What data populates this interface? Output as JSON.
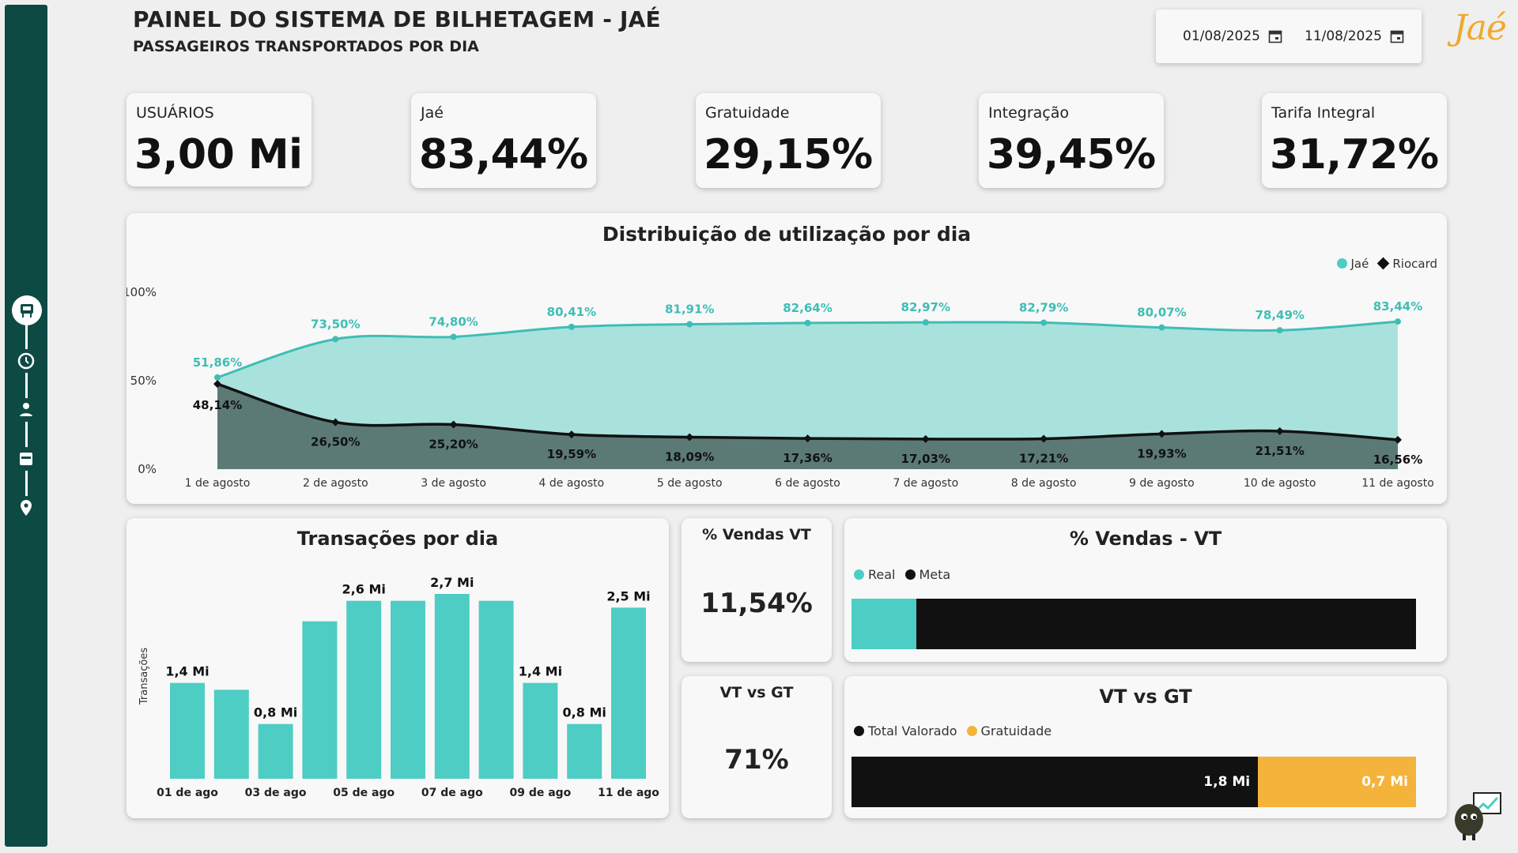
{
  "header": {
    "title": "PAINEL DO SISTEMA DE BILHETAGEM - JAÉ",
    "subtitle": "PASSAGEIROS TRANSPORTADOS POR DIA",
    "date_start": "01/08/2025",
    "date_end": "11/08/2025",
    "logo_text": "Jaé"
  },
  "sidebar": {
    "items": [
      {
        "icon": "bus-stop-icon"
      },
      {
        "icon": "clock-icon"
      },
      {
        "icon": "person-icon"
      },
      {
        "icon": "card-icon"
      },
      {
        "icon": "location-pin-icon"
      }
    ]
  },
  "kpis": [
    {
      "label": "USUÁRIOS",
      "value": "3,00 Mi"
    },
    {
      "label": "Jaé",
      "value": "83,44%"
    },
    {
      "label": "Gratuidade",
      "value": "29,15%"
    },
    {
      "label": "Integração",
      "value": "39,45%"
    },
    {
      "label": "Tarifa Integral",
      "value": "31,72%"
    }
  ],
  "colors": {
    "accent": "#4ecdc4",
    "dark": "#111111",
    "orange": "#f4b33a",
    "sidebar": "#0e4a44"
  },
  "distribution": {
    "title": "Distribuição de utilização por dia",
    "legend": [
      "Jaé",
      "Riocard"
    ],
    "y_ticks": [
      "100%",
      "50%",
      "0%"
    ],
    "chart_data": {
      "type": "area",
      "categories": [
        "1 de agosto",
        "2 de agosto",
        "3 de agosto",
        "4 de agosto",
        "5 de agosto",
        "6 de agosto",
        "7 de agosto",
        "8 de agosto",
        "9 de agosto",
        "10 de agosto",
        "11 de agosto"
      ],
      "ylim": [
        0,
        100
      ],
      "series": [
        {
          "name": "Jaé",
          "values": [
            51.86,
            73.5,
            74.8,
            80.41,
            81.91,
            82.64,
            82.97,
            82.79,
            80.07,
            78.49,
            83.44
          ],
          "labels": [
            "51,86%",
            "73,50%",
            "74,80%",
            "80,41%",
            "81,91%",
            "82,64%",
            "82,97%",
            "82,79%",
            "80,07%",
            "78,49%",
            "83,44%"
          ]
        },
        {
          "name": "Riocard",
          "values": [
            48.14,
            26.5,
            25.2,
            19.59,
            18.09,
            17.36,
            17.03,
            17.21,
            19.93,
            21.51,
            16.56
          ],
          "labels": [
            "48,14%",
            "26,50%",
            "25,20%",
            "19,59%",
            "18,09%",
            "17,36%",
            "17,03%",
            "17,21%",
            "19,93%",
            "21,51%",
            "16,56%"
          ]
        }
      ]
    }
  },
  "transactions": {
    "title": "Transações por dia",
    "ylabel": "Transações",
    "x_tick_labels": [
      "01 de ago",
      "03 de ago",
      "05 de ago",
      "07 de ago",
      "09 de ago",
      "11 de ago"
    ],
    "chart_data": {
      "type": "bar",
      "categories": [
        "01 de ago",
        "02 de ago",
        "03 de ago",
        "04 de ago",
        "05 de ago",
        "06 de ago",
        "07 de ago",
        "08 de ago",
        "09 de ago",
        "10 de ago",
        "11 de ago"
      ],
      "values": [
        1.4,
        1.3,
        0.8,
        2.3,
        2.6,
        2.6,
        2.7,
        2.6,
        1.4,
        0.8,
        2.5
      ],
      "labels": [
        "1,4 Mi",
        "",
        "0,8 Mi",
        "",
        "2,6 Mi",
        "",
        "2,7 Mi",
        "",
        "1,4 Mi",
        "0,8 Mi",
        "2,5 Mi"
      ]
    }
  },
  "vendas_vt_kpi": {
    "title": "% Vendas VT",
    "value": "11,54%"
  },
  "vendas_vt_bar": {
    "title": "% Vendas - VT",
    "legend": [
      "Real",
      "Meta"
    ],
    "chart_data": {
      "type": "bar",
      "series": [
        {
          "name": "Real",
          "values": [
            11.54
          ]
        },
        {
          "name": "Meta",
          "values": [
            100
          ]
        }
      ]
    }
  },
  "vt_gt_kpi": {
    "title": "VT vs GT",
    "value": "71%"
  },
  "vt_gt_bar": {
    "title": "VT vs GT",
    "legend": [
      "Total Valorado",
      "Gratuidade"
    ],
    "chart_data": {
      "type": "bar",
      "series": [
        {
          "name": "Total Valorado",
          "values": [
            1.8
          ],
          "label": "1,8 Mi"
        },
        {
          "name": "Gratuidade",
          "values": [
            0.7
          ],
          "label": "0,7 Mi"
        }
      ]
    }
  }
}
